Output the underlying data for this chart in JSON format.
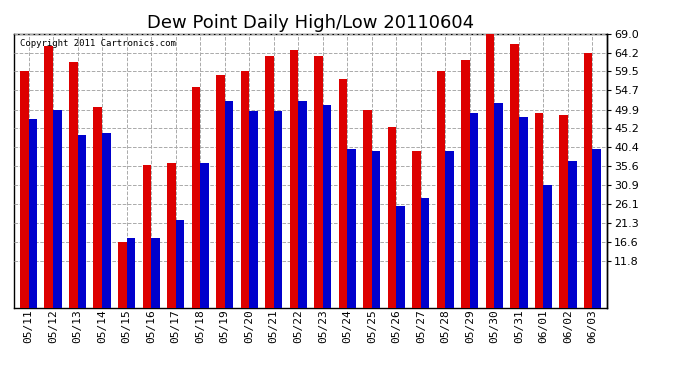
{
  "title": "Dew Point Daily High/Low 20110604",
  "copyright": "Copyright 2011 Cartronics.com",
  "dates": [
    "05/11",
    "05/12",
    "05/13",
    "05/14",
    "05/15",
    "05/16",
    "05/17",
    "05/18",
    "05/19",
    "05/20",
    "05/21",
    "05/22",
    "05/23",
    "05/24",
    "05/25",
    "05/26",
    "05/27",
    "05/28",
    "05/29",
    "05/30",
    "05/31",
    "06/01",
    "06/02",
    "06/03"
  ],
  "high": [
    59.5,
    66.0,
    62.0,
    50.5,
    16.5,
    36.0,
    36.5,
    55.5,
    58.5,
    59.5,
    63.5,
    65.0,
    63.5,
    57.5,
    49.9,
    45.5,
    39.5,
    59.5,
    62.5,
    69.0,
    66.5,
    49.0,
    48.5,
    64.2
  ],
  "low": [
    47.5,
    49.9,
    43.5,
    44.0,
    17.5,
    17.5,
    22.0,
    36.5,
    52.0,
    49.5,
    49.5,
    52.0,
    51.0,
    40.0,
    39.5,
    25.5,
    27.5,
    39.5,
    49.0,
    51.5,
    48.0,
    30.9,
    37.0,
    40.0
  ],
  "high_color": "#dd0000",
  "low_color": "#0000cc",
  "background_color": "#ffffff",
  "plot_background": "#ffffff",
  "grid_color": "#aaaaaa",
  "ytick_labels": [
    "11.8",
    "16.6",
    "21.3",
    "26.1",
    "30.9",
    "35.6",
    "40.4",
    "45.2",
    "49.9",
    "54.7",
    "59.5",
    "64.2",
    "69.0"
  ],
  "ytick_vals": [
    11.8,
    16.6,
    21.3,
    26.1,
    30.9,
    35.6,
    40.4,
    45.2,
    49.9,
    54.7,
    59.5,
    64.2,
    69.0
  ],
  "ymin": 11.8,
  "ymax": 69.0,
  "title_fontsize": 13,
  "tick_fontsize": 8,
  "bar_width": 0.35,
  "dpi": 100,
  "fig_width": 6.9,
  "fig_height": 3.75
}
